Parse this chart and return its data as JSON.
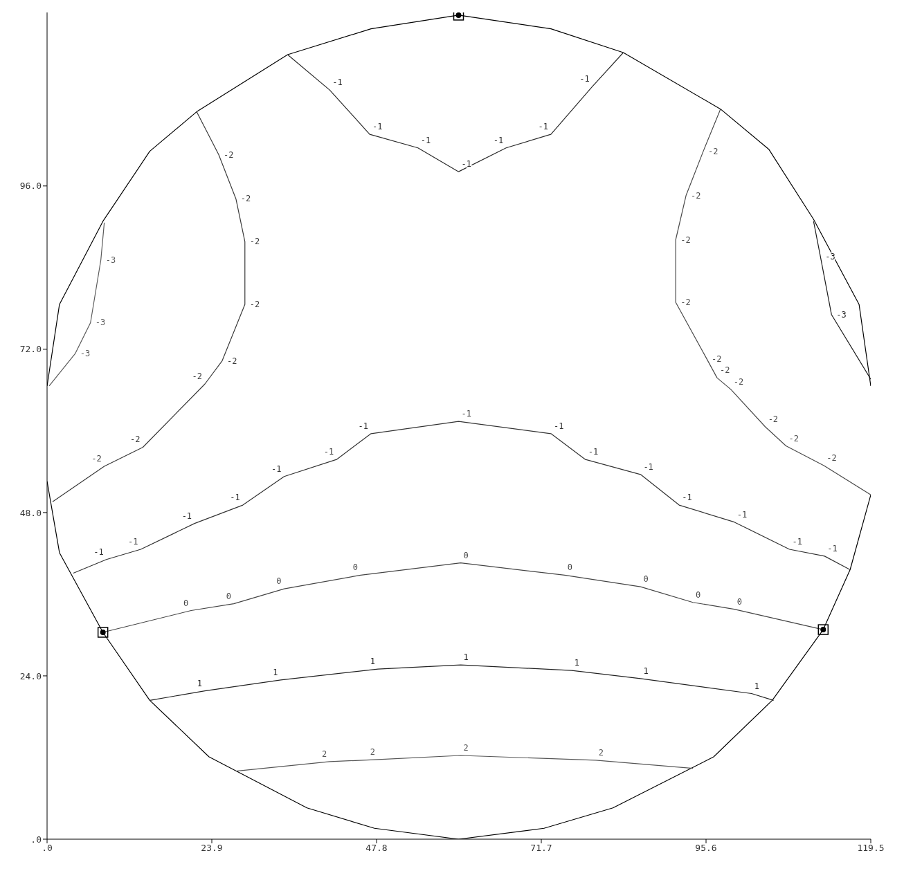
{
  "chart_data": {
    "type": "line",
    "xlim": [
      0,
      119.5
    ],
    "ylim": [
      0,
      121.5
    ],
    "xticks": [
      {
        "value": 0,
        "label": ".0"
      },
      {
        "value": 23.9,
        "label": "23.9"
      },
      {
        "value": 47.8,
        "label": "47.8"
      },
      {
        "value": 71.7,
        "label": "71.7"
      },
      {
        "value": 95.6,
        "label": "95.6"
      },
      {
        "value": 119.5,
        "label": "119.5"
      }
    ],
    "yticks": [
      {
        "value": 0,
        "label": ".0"
      },
      {
        "value": 24,
        "label": "24.0"
      },
      {
        "value": 48,
        "label": "48.0"
      },
      {
        "value": 72,
        "label": "72.0"
      },
      {
        "value": 96,
        "label": "96.0"
      }
    ],
    "grid": false,
    "legend": false,
    "marker": "none",
    "line_style": "solid",
    "data_labels": false,
    "series": [
      {
        "color": "#000000",
        "x": [
          0,
          1.8,
          8.1,
          14.9,
          21.7,
          34.9,
          47.0,
          59.7,
          73.1,
          83.6,
          97.7,
          104.7,
          111.2,
          117.8,
          119.5
        ],
        "values": [
          66.6,
          78.6,
          90.8,
          101.1,
          106.9,
          115.3,
          119.1,
          121.1,
          119.1,
          115.6,
          107.3,
          101.4,
          91.1,
          78.6,
          66.6
        ]
      },
      {
        "color": "#000000",
        "x": [
          0,
          1.8,
          8.1,
          14.9,
          23.5,
          37.7,
          47.5,
          59.7,
          72.1,
          82.1,
          96.7,
          105.2,
          112.6,
          116.5,
          119.5
        ],
        "values": [
          52.6,
          42.1,
          30.4,
          20.4,
          12.1,
          4.6,
          1.6,
          0,
          1.6,
          4.6,
          12.1,
          20.4,
          30.8,
          39.6,
          50.6
        ]
      },
      {
        "name": "-1",
        "color": "#2a2a2a",
        "x": [
          34.9,
          41.0,
          46.8,
          53.8,
          59.7,
          66.6,
          73.1,
          79.1,
          83.6
        ],
        "values": [
          115.3,
          110.1,
          103.6,
          101.6,
          98.1,
          101.6,
          103.6,
          110.6,
          115.6
        ]
      },
      {
        "name": "-2",
        "color": "#3a3a3a",
        "x": [
          21.7,
          24.9,
          27.4,
          28.7,
          28.7,
          25.4,
          22.9,
          13.9,
          8.3,
          0.8
        ],
        "values": [
          106.9,
          100.6,
          94.1,
          87.8,
          78.6,
          70.3,
          66.9,
          57.6,
          54.8,
          49.6
        ]
      },
      {
        "name": "-2",
        "color": "#4a4a4a",
        "x": [
          97.7,
          95.2,
          92.7,
          91.2,
          91.2,
          95.7,
          97.2,
          99.2,
          104.2,
          107.2,
          112.7,
          119.5
        ],
        "values": [
          107.3,
          101.1,
          94.6,
          88.1,
          78.9,
          70.6,
          67.8,
          66.1,
          60.6,
          57.8,
          54.9,
          50.6
        ]
      },
      {
        "name": "-3",
        "color": "#5a5a5a",
        "x": [
          8.3,
          7.8,
          6.3,
          4.1,
          0.3
        ],
        "values": [
          90.6,
          85.1,
          75.9,
          71.4,
          66.6
        ]
      },
      {
        "name": "-3",
        "color": "#1a1a1a",
        "x": [
          111.2,
          112.2,
          113.8,
          119.5
        ],
        "values": [
          90.8,
          85.6,
          77.1,
          67.6
        ]
      },
      {
        "name": "-1",
        "color": "#333333",
        "x": [
          3.8,
          8.6,
          13.6,
          21.4,
          28.4,
          34.4,
          42.0,
          47.0,
          59.7,
          73.1,
          78.1,
          86.1,
          91.7,
          99.7,
          107.7,
          112.8,
          116.5
        ],
        "values": [
          39.1,
          41.1,
          42.6,
          46.4,
          49.1,
          53.3,
          55.8,
          59.6,
          61.4,
          59.6,
          55.8,
          53.6,
          49.1,
          46.6,
          42.6,
          41.6,
          39.6
        ]
      },
      {
        "name": "0",
        "color": "#444444",
        "x": [
          8.1,
          20.9,
          27.1,
          34.4,
          45.5,
          60.0,
          75.1,
          86.1,
          93.7,
          99.7,
          112.6
        ],
        "values": [
          30.4,
          33.6,
          34.6,
          36.8,
          38.8,
          40.6,
          38.8,
          37.1,
          34.8,
          33.8,
          30.8
        ]
      },
      {
        "name": "1",
        "color": "#222222",
        "x": [
          14.9,
          22.9,
          33.9,
          48.0,
          60.0,
          76.1,
          86.1,
          102.2,
          105.4
        ],
        "values": [
          20.4,
          21.8,
          23.4,
          25.0,
          25.6,
          24.8,
          23.6,
          21.4,
          20.4
        ]
      },
      {
        "name": "2",
        "color": "#555555",
        "x": [
          27.4,
          41.0,
          48.0,
          60.0,
          79.6,
          93.7
        ],
        "values": [
          10.0,
          11.4,
          11.7,
          12.3,
          11.6,
          10.4
        ]
      },
      {
        "type": "scatter",
        "marker": "square",
        "color": "#000000",
        "x": [
          59.7,
          8.1,
          112.6
        ],
        "values": [
          121.1,
          30.4,
          30.8
        ]
      }
    ]
  }
}
